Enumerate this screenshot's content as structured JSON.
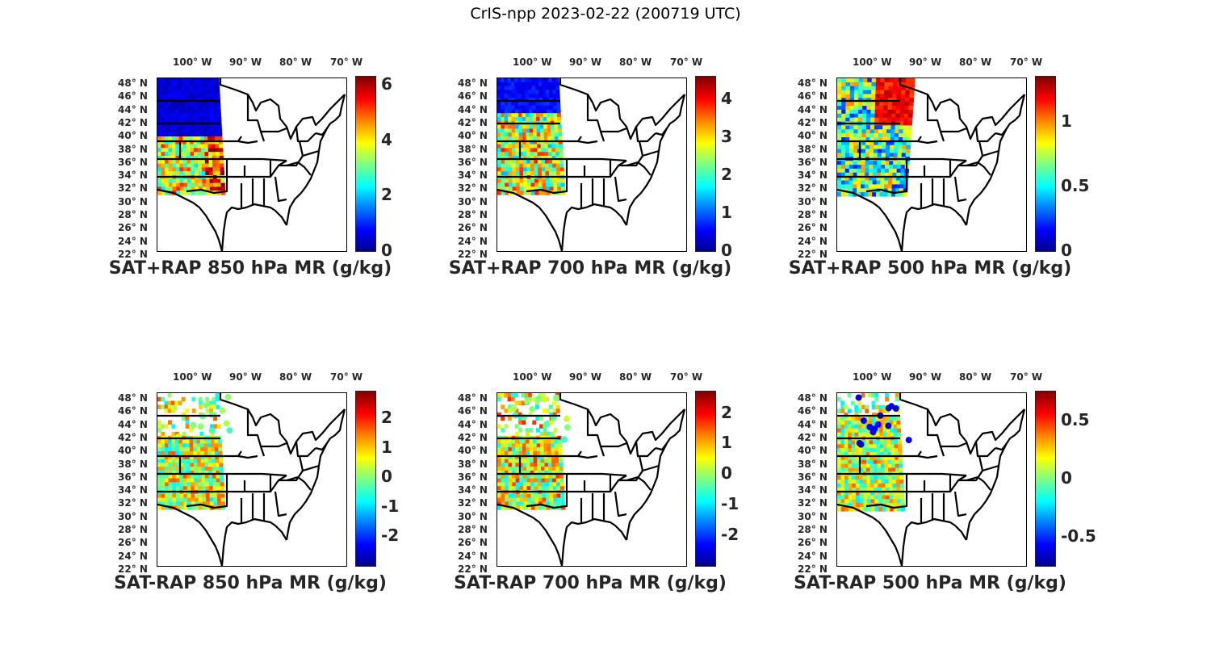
{
  "figure_title": "CrIS-npp 2023-02-22 (200719 UTC)",
  "lon_ticks": [
    "100° W",
    "90° W",
    "80° W",
    "70° W"
  ],
  "lat_ticks": [
    "48° N",
    "46° N",
    "44° N",
    "42° N",
    "40° N",
    "38° N",
    "36° N",
    "34° N",
    "32° N",
    "30° N",
    "28° N",
    "26° N",
    "24° N",
    "22° N"
  ],
  "colormap": "jet",
  "panels": [
    {
      "title": "SAT+RAP 850 hPa MR (g/kg)",
      "field": "sat+rap",
      "level": "850 hPa",
      "units": "g/kg",
      "cbar_min": 0,
      "cbar_max": 6.3,
      "cbar_ticks": [
        "6",
        "4",
        "2",
        "0"
      ],
      "cbar_tick_values": [
        6,
        4,
        2,
        0
      ]
    },
    {
      "title": "SAT+RAP 700 hPa MR (g/kg)",
      "field": "sat+rap",
      "level": "700 hPa",
      "units": "g/kg",
      "cbar_min": 0,
      "cbar_max": 4.6,
      "cbar_ticks": [
        "4",
        "3",
        "2",
        "1",
        "0"
      ],
      "cbar_tick_values": [
        4,
        3,
        2,
        1,
        0
      ]
    },
    {
      "title": "SAT+RAP 500 hPa MR (g/kg)",
      "field": "sat+rap",
      "level": "500 hPa",
      "units": "g/kg",
      "cbar_min": 0,
      "cbar_max": 1.35,
      "cbar_ticks": [
        "1",
        "0.5",
        "0"
      ],
      "cbar_tick_values": [
        1,
        0.5,
        0
      ]
    },
    {
      "title": "SAT-RAP 850 hPa MR (g/kg)",
      "field": "sat-rap",
      "level": "850 hPa",
      "units": "g/kg",
      "cbar_min": -3,
      "cbar_max": 2.9,
      "cbar_ticks": [
        "2",
        "1",
        "0",
        "-1",
        "-2"
      ],
      "cbar_tick_values": [
        2,
        1,
        0,
        -1,
        -2
      ]
    },
    {
      "title": "SAT-RAP 700 hPa MR (g/kg)",
      "field": "sat-rap",
      "level": "700 hPa",
      "units": "g/kg",
      "cbar_min": -3,
      "cbar_max": 2.7,
      "cbar_ticks": [
        "2",
        "1",
        "0",
        "-1",
        "-2"
      ],
      "cbar_tick_values": [
        2,
        1,
        0,
        -1,
        -2
      ]
    },
    {
      "title": "SAT-RAP 500 hPa MR (g/kg)",
      "field": "sat-rap",
      "level": "500 hPa",
      "units": "g/kg",
      "cbar_min": -0.75,
      "cbar_max": 0.75,
      "cbar_ticks": [
        "0.5",
        "0",
        "-0.5"
      ],
      "cbar_tick_values": [
        0.5,
        0,
        -0.5
      ]
    }
  ]
}
